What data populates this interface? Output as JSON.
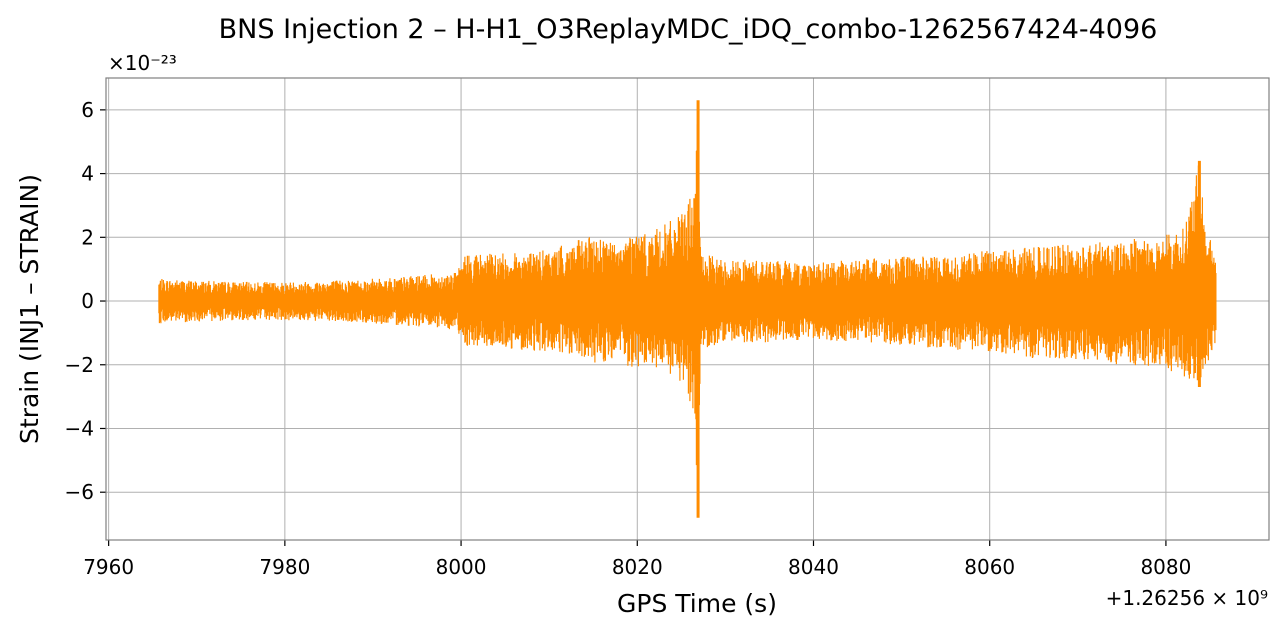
{
  "chart_data": {
    "type": "line",
    "title": "BNS Injection 2 – H-H1_O3ReplayMDC_iDQ_combo-1262567424-4096",
    "xlabel": "GPS Time (s)",
    "ylabel": "Strain (INJ1 – STRAIN)",
    "x_offset_label": "+1.26256 × 10⁹",
    "y_scale_label": "×10⁻²³",
    "xlim": [
      7959.7,
      8091.7
    ],
    "ylim": [
      -7.5,
      7.0
    ],
    "x_ticks": [
      7960,
      7980,
      8000,
      8020,
      8040,
      8060,
      8080
    ],
    "y_ticks": [
      -6,
      -4,
      -2,
      0,
      2,
      4,
      6
    ],
    "x_tick_labels": [
      "7960",
      "7980",
      "8000",
      "8020",
      "8040",
      "8060",
      "8080"
    ],
    "y_tick_labels": [
      "−6",
      "−4",
      "−2",
      "0",
      "2",
      "4",
      "6"
    ],
    "grid": true,
    "line_color": "#ff8c00",
    "series": [
      {
        "x": [
          7965.7,
          7970,
          7975,
          7980,
          7985,
          7990,
          7995,
          7999.5,
          8000.5,
          8005,
          8010,
          8013,
          8016,
          8018,
          8019,
          8021,
          8023,
          8025,
          8026.5,
          8026.9,
          8027.2,
          8030,
          8035,
          8040,
          8045,
          8050,
          8055,
          8060,
          8065,
          8070,
          8075,
          8078,
          8080,
          8082,
          8083.8,
          8084.5,
          8085.7
        ],
        "upper": [
          0.7,
          0.65,
          0.6,
          0.6,
          0.65,
          0.7,
          0.8,
          0.9,
          1.5,
          1.5,
          1.6,
          1.9,
          2.1,
          1.7,
          2.2,
          2.1,
          2.4,
          2.7,
          3.6,
          6.3,
          1.5,
          1.3,
          1.3,
          1.2,
          1.3,
          1.4,
          1.4,
          1.6,
          1.7,
          1.8,
          1.9,
          2.0,
          2.1,
          2.3,
          4.4,
          2.3,
          1.5
        ],
        "lower": [
          -0.7,
          -0.65,
          -0.6,
          -0.6,
          -0.65,
          -0.7,
          -0.8,
          -0.9,
          -1.4,
          -1.5,
          -1.6,
          -1.8,
          -2.0,
          -1.7,
          -2.2,
          -2.1,
          -2.3,
          -2.6,
          -3.5,
          -6.8,
          -1.5,
          -1.3,
          -1.3,
          -1.2,
          -1.3,
          -1.4,
          -1.5,
          -1.6,
          -1.8,
          -1.9,
          -2.0,
          -2.1,
          -2.2,
          -2.4,
          -2.7,
          -2.1,
          -1.5
        ]
      }
    ]
  }
}
